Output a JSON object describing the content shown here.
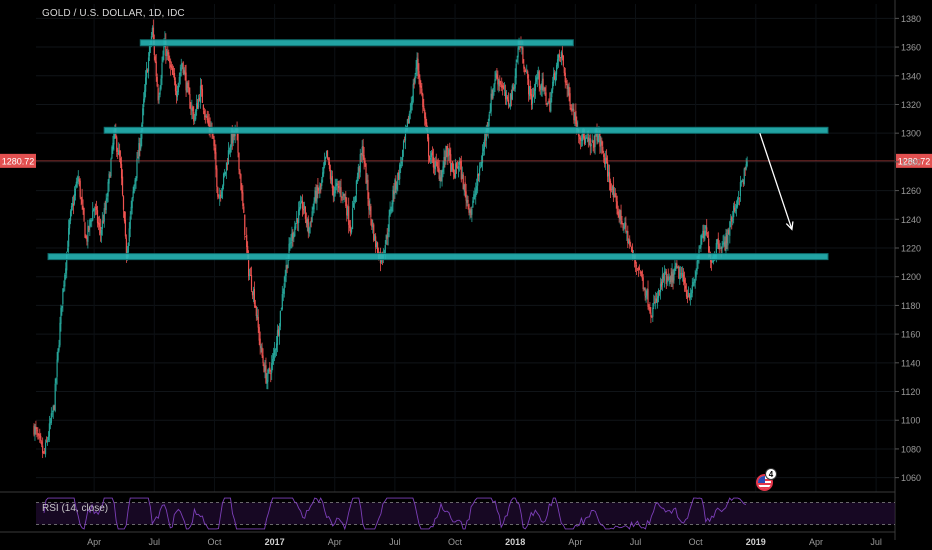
{
  "header": {
    "title": "GOLD / U.S. DOLLAR, 1D, IDC"
  },
  "rsi": {
    "label": "RSI (14, close)"
  },
  "event_badge": {
    "count": "4",
    "icon": "us-flag-icon"
  },
  "colors": {
    "up": "#26a69a",
    "down": "#ef5350",
    "zone": "#26b5b5",
    "price_line": "#ef5350",
    "rsi_line": "#7c3fb8",
    "arrow": "#ffffff"
  },
  "chart_data": {
    "type": "candlestick",
    "title": "GOLD / U.S. DOLLAR, 1D, IDC",
    "x_axis": {
      "labels": [
        "Apr",
        "Jul",
        "Oct",
        "2017",
        "Apr",
        "Jul",
        "Oct",
        "2018",
        "Apr",
        "Jul",
        "Oct",
        "2019",
        "Apr",
        "Jul"
      ],
      "months_index": [
        3,
        6,
        9,
        12,
        15,
        18,
        21,
        24,
        27,
        30,
        33,
        36,
        39,
        42
      ]
    },
    "y_axis": {
      "ylim": [
        1050,
        1390
      ],
      "ticks": [
        1380,
        1360,
        1340,
        1320,
        1300,
        1280,
        1260,
        1240,
        1220,
        1200,
        1180,
        1160,
        1140,
        1120,
        1100,
        1080,
        1060
      ]
    },
    "last_price": {
      "value": 1280.72,
      "label": "1280.72"
    },
    "price_path": [
      [
        0,
        1095
      ],
      [
        0.5,
        1075
      ],
      [
        1.0,
        1110
      ],
      [
        1.4,
        1185
      ],
      [
        1.8,
        1240
      ],
      [
        2.2,
        1270
      ],
      [
        2.6,
        1225
      ],
      [
        3.0,
        1250
      ],
      [
        3.3,
        1230
      ],
      [
        3.6,
        1250
      ],
      [
        4.0,
        1300
      ],
      [
        4.3,
        1280
      ],
      [
        4.6,
        1215
      ],
      [
        5.0,
        1265
      ],
      [
        5.3,
        1295
      ],
      [
        5.6,
        1340
      ],
      [
        5.9,
        1372
      ],
      [
        6.2,
        1325
      ],
      [
        6.5,
        1362
      ],
      [
        6.8,
        1345
      ],
      [
        7.1,
        1330
      ],
      [
        7.4,
        1350
      ],
      [
        7.7,
        1325
      ],
      [
        8.0,
        1310
      ],
      [
        8.3,
        1330
      ],
      [
        8.6,
        1310
      ],
      [
        8.9,
        1300
      ],
      [
        9.2,
        1255
      ],
      [
        9.5,
        1270
      ],
      [
        9.8,
        1295
      ],
      [
        10.1,
        1300
      ],
      [
        10.4,
        1250
      ],
      [
        10.7,
        1205
      ],
      [
        11.0,
        1185
      ],
      [
        11.3,
        1150
      ],
      [
        11.6,
        1128
      ],
      [
        11.9,
        1140
      ],
      [
        12.2,
        1165
      ],
      [
        12.5,
        1200
      ],
      [
        12.8,
        1225
      ],
      [
        13.1,
        1240
      ],
      [
        13.4,
        1250
      ],
      [
        13.7,
        1232
      ],
      [
        14.0,
        1255
      ],
      [
        14.3,
        1262
      ],
      [
        14.6,
        1285
      ],
      [
        14.9,
        1260
      ],
      [
        15.2,
        1262
      ],
      [
        15.5,
        1255
      ],
      [
        15.8,
        1233
      ],
      [
        16.1,
        1268
      ],
      [
        16.4,
        1290
      ],
      [
        16.7,
        1250
      ],
      [
        17.0,
        1225
      ],
      [
        17.3,
        1212
      ],
      [
        17.6,
        1228
      ],
      [
        17.9,
        1258
      ],
      [
        18.2,
        1272
      ],
      [
        18.5,
        1295
      ],
      [
        18.8,
        1320
      ],
      [
        19.1,
        1350
      ],
      [
        19.4,
        1320
      ],
      [
        19.7,
        1285
      ],
      [
        20.0,
        1278
      ],
      [
        20.3,
        1270
      ],
      [
        20.6,
        1290
      ],
      [
        20.9,
        1270
      ],
      [
        21.2,
        1280
      ],
      [
        21.5,
        1258
      ],
      [
        21.8,
        1245
      ],
      [
        22.1,
        1265
      ],
      [
        22.4,
        1288
      ],
      [
        22.7,
        1315
      ],
      [
        23.0,
        1340
      ],
      [
        23.3,
        1335
      ],
      [
        23.6,
        1320
      ],
      [
        23.9,
        1330
      ],
      [
        24.2,
        1365
      ],
      [
        24.5,
        1345
      ],
      [
        24.8,
        1322
      ],
      [
        25.1,
        1340
      ],
      [
        25.4,
        1330
      ],
      [
        25.7,
        1318
      ],
      [
        26.0,
        1345
      ],
      [
        26.3,
        1355
      ],
      [
        26.6,
        1330
      ],
      [
        26.9,
        1315
      ],
      [
        27.2,
        1300
      ],
      [
        27.5,
        1295
      ],
      [
        27.8,
        1290
      ],
      [
        28.1,
        1300
      ],
      [
        28.4,
        1285
      ],
      [
        28.7,
        1268
      ],
      [
        29.0,
        1250
      ],
      [
        29.3,
        1240
      ],
      [
        29.6,
        1228
      ],
      [
        29.9,
        1212
      ],
      [
        30.2,
        1205
      ],
      [
        30.5,
        1190
      ],
      [
        30.8,
        1175
      ],
      [
        31.1,
        1185
      ],
      [
        31.4,
        1200
      ],
      [
        31.7,
        1195
      ],
      [
        32.0,
        1205
      ],
      [
        32.3,
        1200
      ],
      [
        32.6,
        1188
      ],
      [
        32.9,
        1192
      ],
      [
        33.2,
        1222
      ],
      [
        33.5,
        1232
      ],
      [
        33.8,
        1210
      ],
      [
        34.1,
        1225
      ],
      [
        34.4,
        1220
      ],
      [
        34.7,
        1235
      ],
      [
        35.0,
        1250
      ],
      [
        35.3,
        1265
      ],
      [
        35.6,
        1280
      ]
    ],
    "rsi_ylim": [
      20,
      80
    ],
    "rsi_bands": [
      70,
      30
    ],
    "annotations": {
      "resistance_zone_top": {
        "y": 1363,
        "x_from": 5.3,
        "x_to": 26.9
      },
      "resistance_zone_mid": {
        "y": 1302,
        "x_from": 3.5,
        "x_to": 39.6
      },
      "support_zone": {
        "y": 1214,
        "x_from": 0.7,
        "x_to": 39.6
      },
      "forecast_arrow": {
        "from": [
          36.2,
          1300
        ],
        "to": [
          37.8,
          1233
        ]
      }
    }
  }
}
